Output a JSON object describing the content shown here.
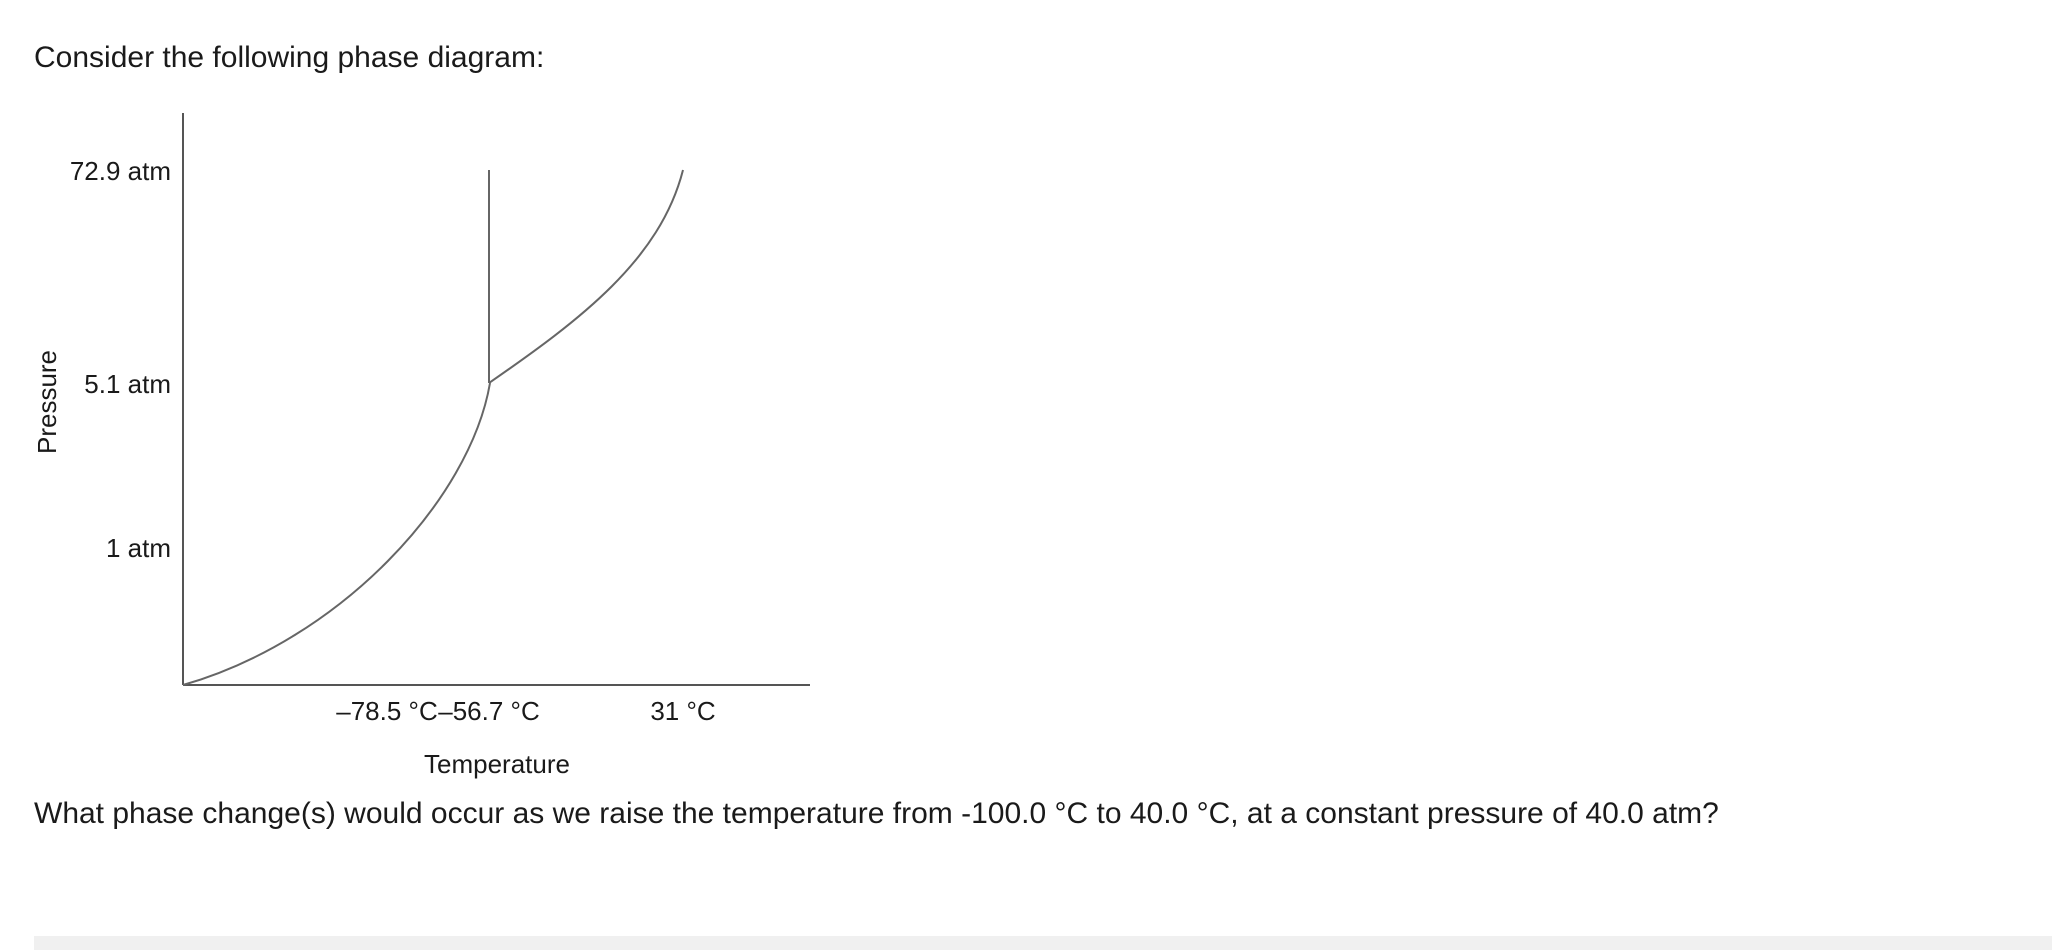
{
  "prompt_text": "Consider the following phase diagram:",
  "question_text": "What phase change(s) would occur as we raise the temperature from -100.0 °C to 40.0 °C, at a constant pressure of 40.0 atm?",
  "diagram": {
    "x_axis_label": "Temperature",
    "y_axis_label": "Pressure",
    "x_ticks": [
      "–78.5 °C",
      "–56.7 °C",
      "31 °C"
    ],
    "y_ticks": [
      "72.9 atm",
      "5.1 atm",
      "1 atm"
    ],
    "line_color": "#666666"
  }
}
